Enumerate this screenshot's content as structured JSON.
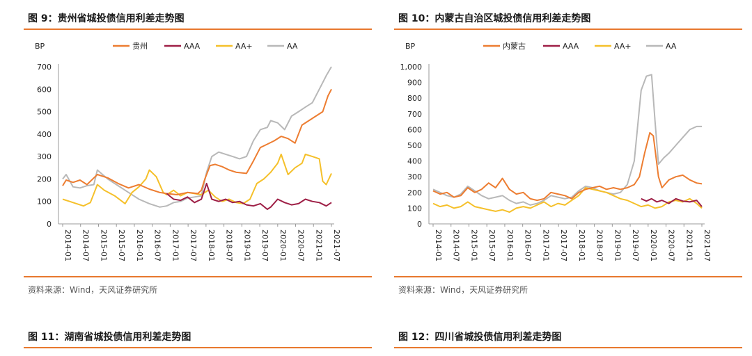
{
  "colors": {
    "accent": "#e8782e",
    "guizhou": "#ed7d31",
    "aaa": "#9e1f46",
    "aaplus": "#f5c02a",
    "aa": "#b8b8b8"
  },
  "figures": [
    {
      "title": "图 9：贵州省城投债信用利差走势图",
      "source": "资料来源：Wind，天风证券研究所"
    },
    {
      "title": "图 10：内蒙古自治区城投债信用利差走势图",
      "source": "资料来源：Wind，天风证券研究所"
    },
    {
      "title": "图 11：湖南省城投债信用利差走势图"
    },
    {
      "title": "图 12：四川省城投债信用利差走势图"
    }
  ],
  "chart_data": [
    {
      "type": "line",
      "title": "贵州省城投债信用利差走势图",
      "ylabel": "BP",
      "ylim": [
        0,
        700
      ],
      "yticks": [
        "0",
        "100",
        "200",
        "300",
        "400",
        "500",
        "600",
        "700"
      ],
      "xlim": [
        2014.0,
        2021.75
      ],
      "xticks": [
        "2014-01",
        "2014-07",
        "2015-01",
        "2015-07",
        "2016-01",
        "2016-07",
        "2017-01",
        "2017-07",
        "2018-01",
        "2018-07",
        "2019-01",
        "2019-07",
        "2020-01",
        "2020-07",
        "2021-01",
        "2021-07"
      ],
      "legend": "top",
      "series": [
        {
          "name": "贵州",
          "color": "#ed7d31",
          "x": [
            2014.0,
            2014.1,
            2014.3,
            2014.5,
            2014.7,
            2015.0,
            2015.3,
            2015.6,
            2015.9,
            2016.2,
            2016.5,
            2016.8,
            2017.0,
            2017.3,
            2017.6,
            2017.9,
            2018.0,
            2018.1,
            2018.25,
            2018.4,
            2018.6,
            2018.8,
            2019.0,
            2019.3,
            2019.5,
            2019.7,
            2019.9,
            2020.1,
            2020.3,
            2020.5,
            2020.7,
            2020.9,
            2021.1,
            2021.3,
            2021.5,
            2021.65,
            2021.75
          ],
          "values": [
            170,
            195,
            185,
            195,
            175,
            220,
            205,
            180,
            160,
            175,
            155,
            140,
            135,
            130,
            140,
            135,
            150,
            200,
            260,
            265,
            255,
            240,
            230,
            225,
            280,
            340,
            355,
            370,
            390,
            380,
            360,
            440,
            460,
            480,
            500,
            570,
            600
          ]
        },
        {
          "name": "AAA",
          "color": "#9e1f46",
          "x": [
            2017.0,
            2017.2,
            2017.4,
            2017.6,
            2017.8,
            2018.0,
            2018.15,
            2018.3,
            2018.5,
            2018.7,
            2018.9,
            2019.1,
            2019.3,
            2019.5,
            2019.7,
            2019.9,
            2020.0,
            2020.2,
            2020.4,
            2020.6,
            2020.8,
            2021.0,
            2021.2,
            2021.4,
            2021.6,
            2021.75
          ],
          "values": [
            135,
            110,
            105,
            120,
            95,
            110,
            180,
            110,
            100,
            110,
            95,
            100,
            85,
            80,
            90,
            65,
            75,
            110,
            95,
            85,
            90,
            110,
            100,
            95,
            80,
            95
          ]
        },
        {
          "name": "AA+",
          "color": "#f5c02a",
          "x": [
            2014.0,
            2014.2,
            2014.4,
            2014.6,
            2014.8,
            2015.0,
            2015.2,
            2015.5,
            2015.8,
            2016.0,
            2016.2,
            2016.4,
            2016.5,
            2016.7,
            2016.9,
            2017.0,
            2017.2,
            2017.4,
            2017.6,
            2017.8,
            2018.0,
            2018.2,
            2018.4,
            2018.6,
            2018.8,
            2019.0,
            2019.2,
            2019.4,
            2019.6,
            2019.8,
            2020.0,
            2020.2,
            2020.3,
            2020.5,
            2020.7,
            2020.9,
            2021.0,
            2021.2,
            2021.4,
            2021.5,
            2021.6,
            2021.75
          ],
          "values": [
            110,
            100,
            90,
            80,
            95,
            175,
            150,
            125,
            90,
            140,
            165,
            200,
            240,
            210,
            140,
            130,
            150,
            125,
            140,
            135,
            130,
            150,
            120,
            100,
            110,
            95,
            90,
            110,
            180,
            200,
            230,
            270,
            310,
            220,
            250,
            270,
            310,
            300,
            290,
            190,
            175,
            225
          ]
        },
        {
          "name": "AA",
          "color": "#b8b8b8",
          "x": [
            2014.0,
            2014.1,
            2014.3,
            2014.5,
            2014.7,
            2014.9,
            2015.0,
            2015.3,
            2015.6,
            2015.9,
            2016.2,
            2016.5,
            2016.8,
            2017.0,
            2017.2,
            2017.4,
            2017.6,
            2017.8,
            2018.0,
            2018.15,
            2018.3,
            2018.5,
            2018.7,
            2018.9,
            2019.1,
            2019.3,
            2019.5,
            2019.7,
            2019.9,
            2020.0,
            2020.2,
            2020.4,
            2020.6,
            2020.8,
            2021.0,
            2021.2,
            2021.4,
            2021.6,
            2021.75
          ],
          "values": [
            200,
            220,
            165,
            160,
            170,
            175,
            240,
            200,
            170,
            140,
            110,
            90,
            75,
            80,
            95,
            100,
            115,
            120,
            125,
            230,
            300,
            320,
            310,
            300,
            290,
            300,
            370,
            420,
            430,
            460,
            450,
            420,
            480,
            500,
            520,
            540,
            600,
            660,
            700
          ]
        }
      ]
    },
    {
      "type": "line",
      "title": "内蒙古自治区城投债信用利差走势图",
      "ylabel": "BP",
      "ylim": [
        0,
        1000
      ],
      "yticks": [
        "0",
        "100",
        "200",
        "300",
        "400",
        "500",
        "600",
        "700",
        "800",
        "900",
        "1,000"
      ],
      "xlim": [
        2014.0,
        2021.75
      ],
      "xticks": [
        "2014-01",
        "2014-07",
        "2015-01",
        "2015-07",
        "2016-01",
        "2016-07",
        "2017-01",
        "2017-07",
        "2018-01",
        "2018-07",
        "2019-01",
        "2019-07",
        "2020-01",
        "2020-07",
        "2021-01",
        "2021-07"
      ],
      "legend": "top",
      "series": [
        {
          "name": "内蒙古",
          "color": "#ed7d31",
          "x": [
            2014.0,
            2014.2,
            2014.4,
            2014.6,
            2014.8,
            2015.0,
            2015.2,
            2015.4,
            2015.6,
            2015.8,
            2016.0,
            2016.2,
            2016.4,
            2016.6,
            2016.8,
            2017.0,
            2017.2,
            2017.4,
            2017.6,
            2017.8,
            2018.0,
            2018.2,
            2018.4,
            2018.6,
            2018.8,
            2019.0,
            2019.2,
            2019.4,
            2019.6,
            2019.8,
            2019.95,
            2020.1,
            2020.25,
            2020.35,
            2020.5,
            2020.6,
            2020.8,
            2021.0,
            2021.2,
            2021.4,
            2021.6,
            2021.75
          ],
          "values": [
            210,
            190,
            200,
            170,
            180,
            230,
            200,
            220,
            260,
            230,
            290,
            220,
            190,
            200,
            160,
            150,
            160,
            200,
            190,
            180,
            160,
            200,
            220,
            230,
            240,
            220,
            230,
            220,
            230,
            250,
            300,
            450,
            580,
            560,
            300,
            230,
            280,
            300,
            310,
            280,
            260,
            255
          ]
        },
        {
          "name": "AAA",
          "color": "#9e1f46",
          "x": [
            2020.0,
            2020.15,
            2020.3,
            2020.45,
            2020.6,
            2020.8,
            2021.0,
            2021.2,
            2021.4,
            2021.6,
            2021.75
          ],
          "values": [
            160,
            145,
            160,
            140,
            150,
            130,
            160,
            145,
            140,
            150,
            110
          ]
        },
        {
          "name": "AA+",
          "color": "#f5c02a",
          "x": [
            2014.0,
            2014.2,
            2014.4,
            2014.6,
            2014.8,
            2015.0,
            2015.2,
            2015.4,
            2015.6,
            2015.8,
            2016.0,
            2016.2,
            2016.4,
            2016.6,
            2016.8,
            2017.0,
            2017.2,
            2017.4,
            2017.6,
            2017.8,
            2018.0,
            2018.2,
            2018.4,
            2018.6,
            2018.8,
            2019.0,
            2019.2,
            2019.4,
            2019.6,
            2019.8,
            2020.0,
            2020.2,
            2020.4,
            2020.6,
            2020.8,
            2021.0,
            2021.2,
            2021.4,
            2021.6,
            2021.75
          ],
          "values": [
            130,
            110,
            120,
            100,
            110,
            140,
            110,
            100,
            90,
            80,
            90,
            75,
            100,
            110,
            100,
            120,
            140,
            110,
            130,
            120,
            150,
            180,
            230,
            220,
            210,
            200,
            180,
            160,
            150,
            130,
            110,
            120,
            100,
            110,
            140,
            150,
            140,
            160,
            130,
            100
          ]
        },
        {
          "name": "AA",
          "color": "#b8b8b8",
          "x": [
            2014.0,
            2014.2,
            2014.4,
            2014.6,
            2014.8,
            2015.0,
            2015.2,
            2015.4,
            2015.6,
            2015.8,
            2016.0,
            2016.2,
            2016.4,
            2016.6,
            2016.8,
            2017.0,
            2017.2,
            2017.4,
            2017.6,
            2017.8,
            2018.0,
            2018.2,
            2018.4,
            2018.6,
            2018.8,
            2019.0,
            2019.2,
            2019.4,
            2019.6,
            2019.8,
            2020.0,
            2020.15,
            2020.3,
            2020.4,
            2020.5,
            2020.65,
            2020.8,
            2021.0,
            2021.2,
            2021.4,
            2021.6,
            2021.75
          ],
          "values": [
            220,
            200,
            180,
            170,
            190,
            240,
            210,
            180,
            160,
            170,
            180,
            150,
            130,
            140,
            120,
            130,
            150,
            180,
            170,
            160,
            170,
            210,
            240,
            230,
            210,
            200,
            190,
            200,
            250,
            400,
            850,
            940,
            950,
            650,
            380,
            420,
            450,
            500,
            550,
            600,
            620,
            620
          ]
        }
      ]
    }
  ]
}
